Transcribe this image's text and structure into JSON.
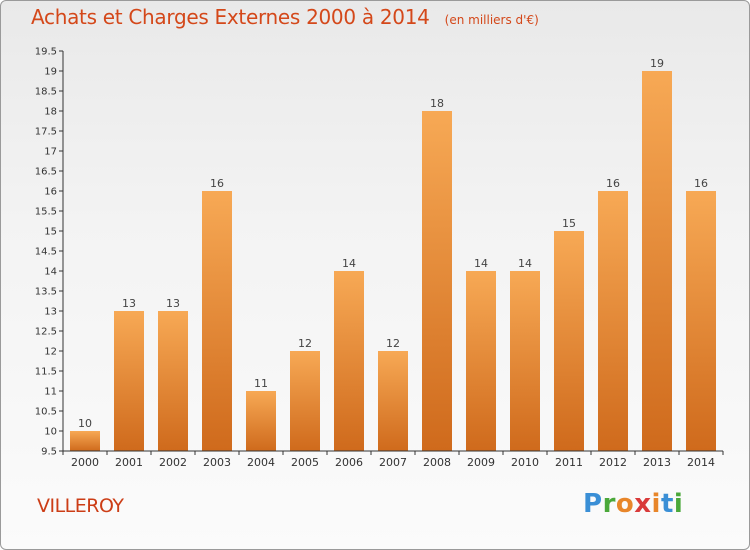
{
  "title": "Achats et Charges Externes 2000 à 2014",
  "subtitle": "(en milliers d'€)",
  "location": "VILLEROY",
  "brand": {
    "letters": [
      "P",
      "r",
      "o",
      "x",
      "i",
      "t",
      "i"
    ],
    "colors": [
      "#3a8fd6",
      "#4aa83a",
      "#e8862a",
      "#d93a3a",
      "#e8862a",
      "#3a8fd6",
      "#4aa83a"
    ]
  },
  "colors": {
    "bar_light": "#f7a955",
    "bar_dark": "#cf6a1c",
    "title": "#d4481a"
  },
  "chart_data": {
    "type": "bar",
    "categories": [
      "2000",
      "2001",
      "2002",
      "2003",
      "2004",
      "2005",
      "2006",
      "2007",
      "2008",
      "2009",
      "2010",
      "2011",
      "2012",
      "2013",
      "2014"
    ],
    "values": [
      10,
      13,
      13,
      16,
      11,
      12,
      14,
      12,
      18,
      14,
      14,
      15,
      16,
      19,
      16
    ],
    "data_labels": [
      "10",
      "13",
      "13",
      "16",
      "11",
      "12",
      "14",
      "12",
      "18",
      "14",
      "14",
      "15",
      "16",
      "19",
      "16"
    ],
    "y_ticks": [
      "9.5",
      "10",
      "10.5",
      "11",
      "11.5",
      "12",
      "12.5",
      "13",
      "13.5",
      "14",
      "14.5",
      "15",
      "15.5",
      "16",
      "16.5",
      "17",
      "17.5",
      "18",
      "18.5",
      "19",
      "19.5"
    ],
    "ylim": [
      9.5,
      19.5
    ],
    "y_tick_step": 0.5,
    "grid": false,
    "legend": "none"
  }
}
